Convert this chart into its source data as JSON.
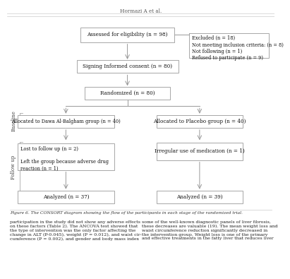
{
  "title_top": "Hormazi A et al.",
  "figure_caption": "Figure 6. The CONSORT diagram showing the flow of the participants in each stage of the randomized trial.",
  "boxes": {
    "assessed": "Assessed for eligibility (n = 98)",
    "excluded": "Excluded (n = 18)\nNot meeting inclusion criteria: (n = 8)\nNot following (n = 1)\nRefused to participate (n = 9)",
    "consent": "Signing Informed consent (n = 80)",
    "randomized": "Randomized (n = 80)",
    "alloc_intervention": "Allocated to Dawa Al-Balgham group (n = 40)",
    "alloc_placebo": "Allocated to Placebo group (n = 40)",
    "followup_intervention": "Lost to follow up (n = 2)\n\nLeft the group because adverse drug\nreaction (n = 1)",
    "followup_placebo": "Irregular use of medication (n = 1)",
    "analyzed_intervention": "Analyzed (n = 37)",
    "analyzed_placebo": "Analyzed (n = 39)"
  },
  "side_labels": {
    "baseline": "Baseline",
    "followup": "Follow up"
  },
  "bg_color": "#ffffff",
  "box_edge_color": "#999999",
  "text_color": "#111111",
  "line_color": "#999999",
  "header_line_color": "#cccccc",
  "font_size": 5.2,
  "small_font_size": 4.8,
  "caption_font_size": 4.3,
  "body_font_size": 4.5
}
